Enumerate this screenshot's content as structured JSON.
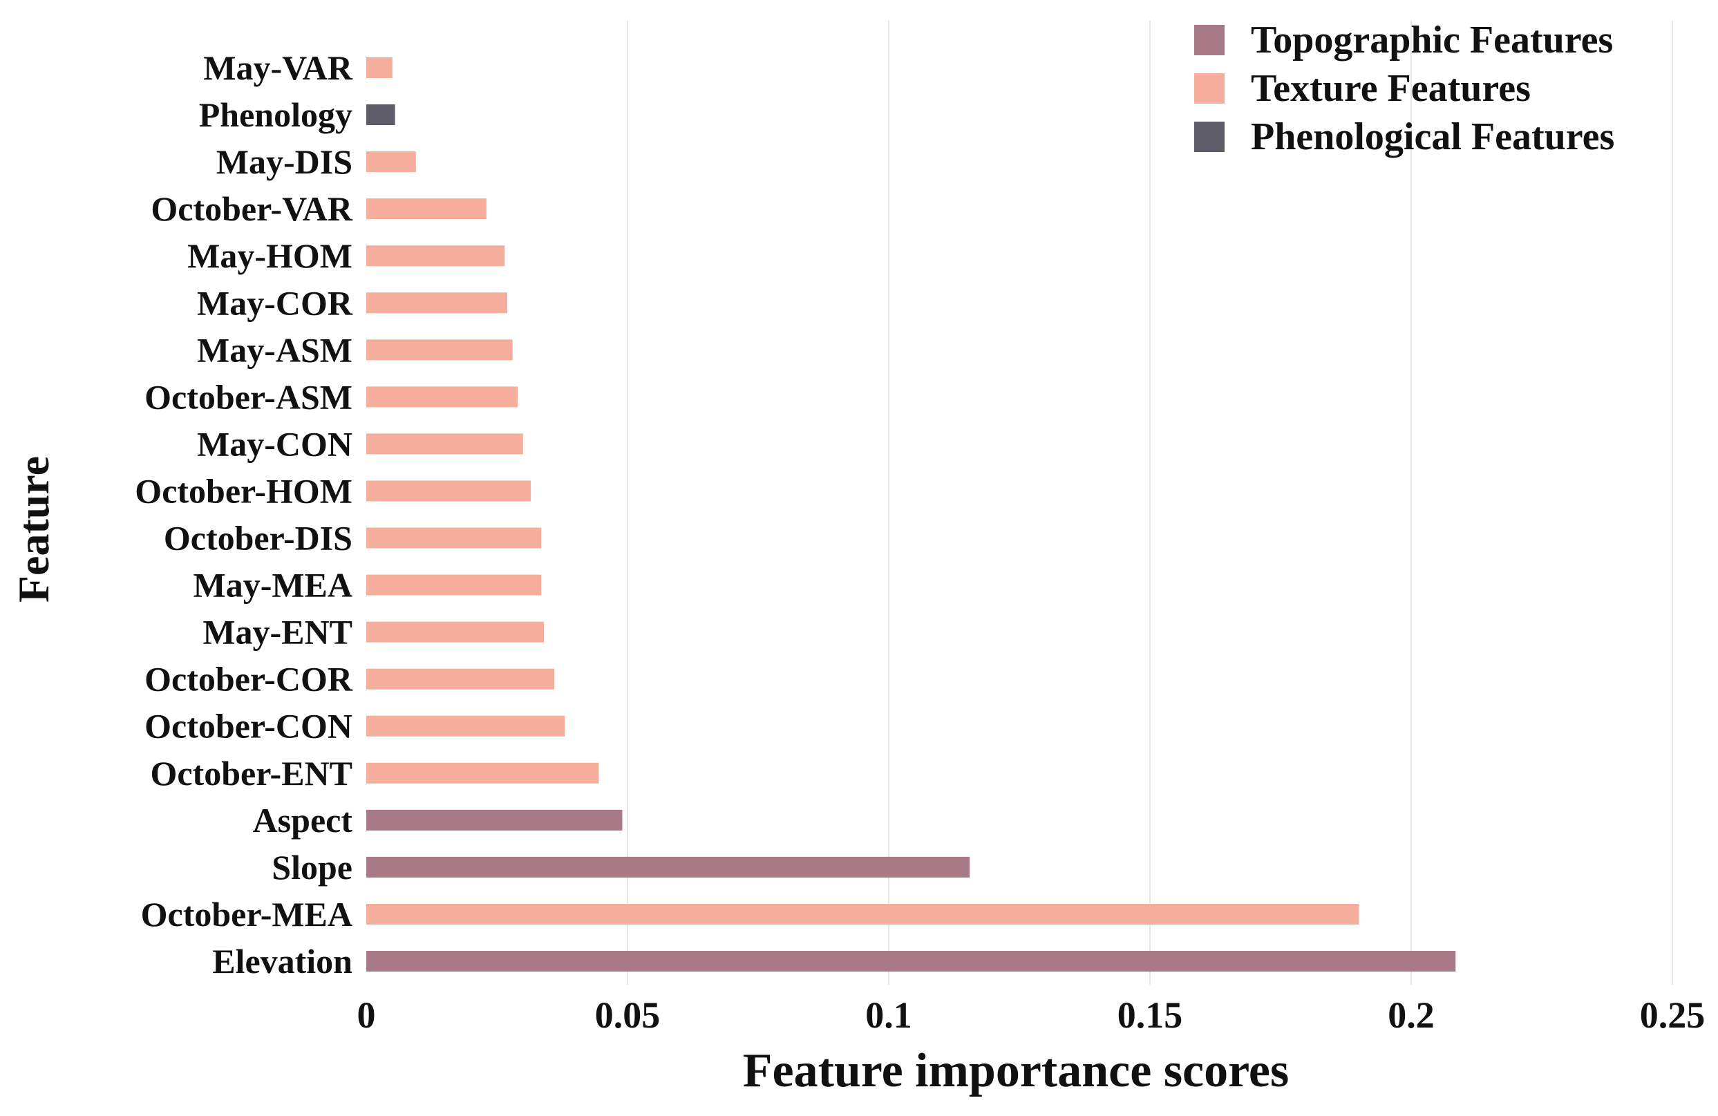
{
  "chart_data": {
    "type": "bar",
    "orientation": "horizontal",
    "xlabel": "Feature importance scores",
    "ylabel": "Feature",
    "xlim": [
      0,
      0.25
    ],
    "xticks": [
      "0",
      "0.05",
      "0.1",
      "0.15",
      "0.2",
      "0.25"
    ],
    "xtick_values": [
      0,
      0.05,
      0.1,
      0.15,
      0.2,
      0.25
    ],
    "grid": "vertical",
    "legend_position": "top-right",
    "legend": [
      {
        "name": "Topographic Features",
        "color": "#A87A85"
      },
      {
        "name": "Texture Features",
        "color": "#F5AE9B"
      },
      {
        "name": "Phenological Features",
        "color": "#5E5C69"
      }
    ],
    "bars": [
      {
        "label": "May-VAR",
        "value": 0.005,
        "group": "Texture Features"
      },
      {
        "label": "Phenology",
        "value": 0.0055,
        "group": "Phenological Features"
      },
      {
        "label": "May-DIS",
        "value": 0.0095,
        "group": "Texture Features"
      },
      {
        "label": "October-VAR",
        "value": 0.023,
        "group": "Texture Features"
      },
      {
        "label": "May-HOM",
        "value": 0.0265,
        "group": "Texture Features"
      },
      {
        "label": "May-COR",
        "value": 0.027,
        "group": "Texture Features"
      },
      {
        "label": "May-ASM",
        "value": 0.028,
        "group": "Texture Features"
      },
      {
        "label": "October-ASM",
        "value": 0.029,
        "group": "Texture Features"
      },
      {
        "label": "May-CON",
        "value": 0.03,
        "group": "Texture Features"
      },
      {
        "label": "October-HOM",
        "value": 0.0315,
        "group": "Texture Features"
      },
      {
        "label": "October-DIS",
        "value": 0.0335,
        "group": "Texture Features"
      },
      {
        "label": "May-MEA",
        "value": 0.0335,
        "group": "Texture Features"
      },
      {
        "label": "May-ENT",
        "value": 0.034,
        "group": "Texture Features"
      },
      {
        "label": "October-COR",
        "value": 0.036,
        "group": "Texture Features"
      },
      {
        "label": "October-CON",
        "value": 0.038,
        "group": "Texture Features"
      },
      {
        "label": "October-ENT",
        "value": 0.0445,
        "group": "Texture Features"
      },
      {
        "label": "Aspect",
        "value": 0.049,
        "group": "Topographic Features"
      },
      {
        "label": "Slope",
        "value": 0.1155,
        "group": "Topographic Features"
      },
      {
        "label": "October-MEA",
        "value": 0.19,
        "group": "Texture Features"
      },
      {
        "label": "Elevation",
        "value": 0.2085,
        "group": "Topographic Features"
      }
    ]
  }
}
